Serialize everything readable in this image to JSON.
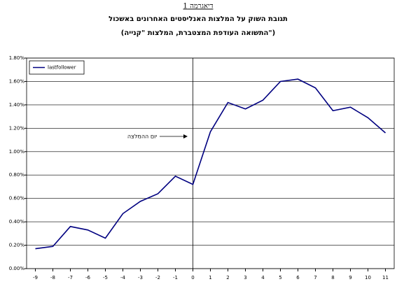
{
  "chart_data": {
    "type": "line",
    "title": "דיאגרמה 1",
    "subtitle": "תגובת השוק על המלצות האנליסטים האחרונים באשכול",
    "subtitle2": "(התשואה העודפת המצטברת, המלצות \"קנייה\")",
    "annotation": "יום ההמלצה",
    "x": [
      -9,
      -8,
      -7,
      -6,
      -5,
      -4,
      -3,
      -2,
      -1,
      0,
      1,
      2,
      3,
      4,
      5,
      6,
      7,
      8,
      9,
      10,
      11
    ],
    "series": [
      {
        "name": "lastfollower",
        "color": "#000080",
        "values": [
          0.17,
          0.19,
          0.36,
          0.33,
          0.26,
          0.47,
          0.575,
          0.64,
          0.79,
          0.72,
          1.17,
          1.42,
          1.365,
          1.44,
          1.6,
          1.62,
          1.545,
          1.35,
          1.38,
          1.29,
          1.16
        ]
      }
    ],
    "xlim": [
      -9.5,
      11.5
    ],
    "xticks": [
      -9,
      -8,
      -7,
      -6,
      -5,
      -4,
      -3,
      -2,
      -1,
      0,
      1,
      2,
      3,
      4,
      5,
      6,
      7,
      8,
      9,
      10,
      11
    ],
    "ylim": [
      0,
      1.8
    ],
    "yticks": [
      {
        "value": 0,
        "label": "0.00%"
      },
      {
        "value": 0.2,
        "label": "0.20%"
      },
      {
        "value": 0.4,
        "label": "0.40%"
      },
      {
        "value": 0.6,
        "label": "0.60%"
      },
      {
        "value": 0.8,
        "label": "0.80%"
      },
      {
        "value": 1.0,
        "label": "1.00%"
      },
      {
        "value": 1.2,
        "label": "1.20%"
      },
      {
        "value": 1.4,
        "label": "1.40%"
      },
      {
        "value": 1.6,
        "label": "1.60%"
      },
      {
        "value": 1.8,
        "label": "1.80%"
      }
    ],
    "grid": true,
    "legend": "upper left"
  }
}
